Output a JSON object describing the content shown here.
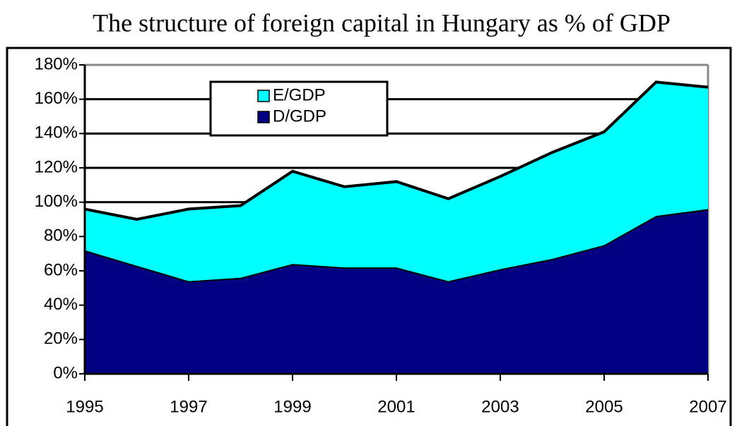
{
  "chart_data": {
    "type": "stacked_area",
    "title": "The structure of foreign capital in Hungary as % of GDP",
    "x": [
      1995,
      1996,
      1997,
      1998,
      1999,
      2000,
      2001,
      2002,
      2003,
      2004,
      2005,
      2006,
      2007
    ],
    "series": [
      {
        "name": "D/GDP",
        "color": "#000080",
        "values": [
          72,
          63,
          54,
          56,
          64,
          62,
          62,
          54,
          61,
          67,
          75,
          92,
          96
        ]
      },
      {
        "name": "E/GDP",
        "color": "#00ffff",
        "values": [
          24,
          27,
          42,
          42,
          54,
          47,
          50,
          48,
          54,
          62,
          66,
          78,
          71
        ]
      }
    ],
    "xlim": [
      1995,
      2007
    ],
    "xticks": [
      1995,
      1997,
      1999,
      2001,
      2003,
      2005,
      2007
    ],
    "ylim": [
      0,
      180
    ],
    "yticks": [
      {
        "value": 0,
        "label": "0%"
      },
      {
        "value": 20,
        "label": "20%"
      },
      {
        "value": 40,
        "label": "40%"
      },
      {
        "value": 60,
        "label": "60%"
      },
      {
        "value": 80,
        "label": "80%"
      },
      {
        "value": 100,
        "label": "100%"
      },
      {
        "value": 120,
        "label": "120%"
      },
      {
        "value": 140,
        "label": "140%"
      },
      {
        "value": 160,
        "label": "160%"
      },
      {
        "value": 180,
        "label": "180%"
      }
    ],
    "grid": true,
    "legend": "upper-left"
  }
}
